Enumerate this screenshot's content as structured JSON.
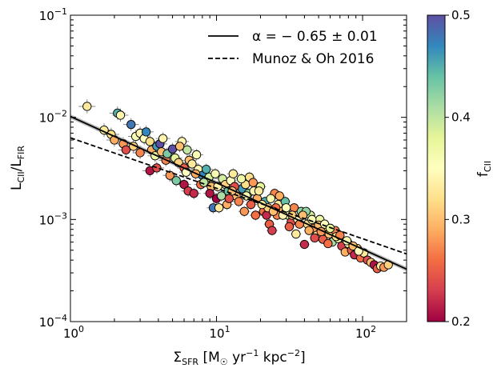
{
  "chart_data": {
    "type": "scatter",
    "x_scale": "log",
    "y_scale": "log",
    "xlim": [
      1,
      200
    ],
    "ylim": [
      0.0001,
      0.1
    ],
    "x_ticks": [
      {
        "value": 1,
        "base": "10",
        "exp": "0"
      },
      {
        "value": 10,
        "base": "10",
        "exp": "1"
      },
      {
        "value": 100,
        "base": "10",
        "exp": "2"
      }
    ],
    "y_ticks": [
      {
        "value": 0.0001,
        "base": "10",
        "exp": "−4"
      },
      {
        "value": 0.001,
        "base": "10",
        "exp": "−3"
      },
      {
        "value": 0.01,
        "base": "10",
        "exp": "−2"
      },
      {
        "value": 0.1,
        "base": "10",
        "exp": "−1"
      }
    ],
    "xlabel": {
      "pre": "Σ",
      "sub": "SFR",
      "unit_a": " [M",
      "unit_sun": "☉",
      "unit_b": " yr",
      "exp1": "−1",
      "unit_c": " kpc",
      "exp2": "−2",
      "close": "]"
    },
    "ylabel": {
      "a": "L",
      "a_sub": "CII",
      "sep": "/L",
      "b_sub": "FIR"
    },
    "colorbar": {
      "label_main": "f",
      "label_sub": "CII",
      "range": [
        0.2,
        0.5
      ],
      "ticks": [
        "0.2",
        "0.3",
        "0.4",
        "0.5"
      ],
      "cmap": [
        "#9e0142",
        "#d53e4f",
        "#f46d43",
        "#fdae61",
        "#fee08b",
        "#ffffbf",
        "#e6f598",
        "#abdda4",
        "#66c2a5",
        "#3288bd",
        "#5e4fa2"
      ]
    },
    "legend": {
      "position": "top-right",
      "entries": [
        {
          "label": "α = − 0.65 ± 0.01",
          "style": "solid"
        },
        {
          "label": "Munoz & Oh 2016",
          "style": "dashed"
        }
      ]
    },
    "series": [
      {
        "name": "α = − 0.65 ± 0.01",
        "type": "line",
        "style": "solid",
        "x": [
          1,
          200
        ],
        "y": [
          0.0102,
          0.000326
        ],
        "band": 0.05
      },
      {
        "name": "Munoz & Oh 2016",
        "type": "line",
        "style": "dashed",
        "x": [
          1,
          200
        ],
        "y": [
          0.0063,
          0.00046
        ]
      },
      {
        "name": "data",
        "type": "scatter",
        "points": [
          [
            1.3,
            0.0128,
            0.33
          ],
          [
            1.7,
            0.0075,
            0.33
          ],
          [
            2.1,
            0.011,
            0.45
          ],
          [
            2.2,
            0.0105,
            0.34
          ],
          [
            1.9,
            0.0068,
            0.32
          ],
          [
            2.0,
            0.006,
            0.29
          ],
          [
            2.3,
            0.0055,
            0.28
          ],
          [
            2.4,
            0.0048,
            0.24
          ],
          [
            2.6,
            0.0085,
            0.48
          ],
          [
            2.8,
            0.0065,
            0.36
          ],
          [
            3.0,
            0.007,
            0.34
          ],
          [
            3.2,
            0.0062,
            0.35
          ],
          [
            3.3,
            0.0072,
            0.47
          ],
          [
            3.5,
            0.0058,
            0.32
          ],
          [
            3.6,
            0.0048,
            0.29
          ],
          [
            3.8,
            0.0042,
            0.37
          ],
          [
            3.9,
            0.0052,
            0.46
          ],
          [
            4.1,
            0.0055,
            0.5
          ],
          [
            4.2,
            0.0046,
            0.3
          ],
          [
            4.5,
            0.0038,
            0.27
          ],
          [
            4.6,
            0.0044,
            0.43
          ],
          [
            5.0,
            0.0049,
            0.5
          ],
          [
            5.2,
            0.004,
            0.38
          ],
          [
            5.5,
            0.0036,
            0.31
          ],
          [
            5.8,
            0.0058,
            0.34
          ],
          [
            6.0,
            0.0032,
            0.25
          ],
          [
            6.3,
            0.0048,
            0.4
          ],
          [
            6.5,
            0.0038,
            0.3
          ],
          [
            3.5,
            0.003,
            0.21
          ],
          [
            3.9,
            0.0032,
            0.24
          ],
          [
            4.8,
            0.0027,
            0.28
          ],
          [
            5.3,
            0.0024,
            0.43
          ],
          [
            6.0,
            0.0022,
            0.21
          ],
          [
            6.4,
            0.0019,
            0.23
          ],
          [
            7.0,
            0.0018,
            0.22
          ],
          [
            7.3,
            0.0043,
            0.36
          ],
          [
            7.5,
            0.0031,
            0.34
          ],
          [
            8.0,
            0.0027,
            0.47
          ],
          [
            8.4,
            0.0024,
            0.33
          ],
          [
            8.9,
            0.0026,
            0.39
          ],
          [
            9.2,
            0.0021,
            0.3
          ],
          [
            9.5,
            0.0013,
            0.48
          ],
          [
            10.0,
            0.0016,
            0.2
          ],
          [
            10.4,
            0.0013,
            0.33
          ],
          [
            11.0,
            0.0025,
            0.39
          ],
          [
            11.5,
            0.0022,
            0.31
          ],
          [
            12.0,
            0.0019,
            0.44
          ],
          [
            12.5,
            0.0024,
            0.35
          ],
          [
            13.0,
            0.0028,
            0.33
          ],
          [
            13.6,
            0.0017,
            0.3
          ],
          [
            14.2,
            0.0015,
            0.27
          ],
          [
            15.0,
            0.002,
            0.46
          ],
          [
            15.8,
            0.0022,
            0.32
          ],
          [
            16.5,
            0.0018,
            0.42
          ],
          [
            17.2,
            0.0014,
            0.25
          ],
          [
            18.0,
            0.0019,
            0.34
          ],
          [
            19.0,
            0.0016,
            0.29
          ],
          [
            20.0,
            0.0021,
            0.38
          ],
          [
            21.0,
            0.0012,
            0.26
          ],
          [
            22.0,
            0.0011,
            0.22
          ],
          [
            23.0,
            0.0009,
            0.25
          ],
          [
            24.0,
            0.00078,
            0.23
          ],
          [
            25.0,
            0.0018,
            0.27
          ],
          [
            26.5,
            0.0014,
            0.33
          ],
          [
            28.0,
            0.0012,
            0.3
          ],
          [
            29.5,
            0.0015,
            0.44
          ],
          [
            31.0,
            0.0011,
            0.37
          ],
          [
            32.5,
            0.00095,
            0.24
          ],
          [
            34.0,
            0.0013,
            0.27
          ],
          [
            36.0,
            0.001,
            0.35
          ],
          [
            38.0,
            0.0012,
            0.42
          ],
          [
            40.0,
            0.00057,
            0.22
          ],
          [
            42.0,
            0.0009,
            0.32
          ],
          [
            44.0,
            0.0011,
            0.39
          ],
          [
            46.0,
            0.00082,
            0.28
          ],
          [
            48.5,
            0.0007,
            0.33
          ],
          [
            51.0,
            0.001,
            0.37
          ],
          [
            53.5,
            0.00064,
            0.25
          ],
          [
            56.0,
            0.00085,
            0.34
          ],
          [
            59.0,
            0.00072,
            0.3
          ],
          [
            62.0,
            0.0006,
            0.41
          ],
          [
            65.0,
            0.00078,
            0.27
          ],
          [
            68.0,
            0.00065,
            0.36
          ],
          [
            72.0,
            0.00055,
            0.23
          ],
          [
            76.0,
            0.00048,
            0.29
          ],
          [
            80.0,
            0.00058,
            0.34
          ],
          [
            84.0,
            0.0005,
            0.25
          ],
          [
            88.0,
            0.00045,
            0.22
          ],
          [
            92.0,
            0.00052,
            0.31
          ],
          [
            97.0,
            0.00042,
            0.26
          ],
          [
            102.0,
            0.00047,
            0.33
          ],
          [
            108.0,
            0.0004,
            0.24
          ],
          [
            114.0,
            0.00038,
            0.3
          ],
          [
            120.0,
            0.00036,
            0.21
          ],
          [
            126.0,
            0.00033,
            0.25
          ],
          [
            133.0,
            0.00035,
            0.33
          ],
          [
            140.0,
            0.00034,
            0.28
          ],
          [
            150.0,
            0.00036,
            0.31
          ],
          [
            8.5,
            0.0031,
            0.45
          ],
          [
            9.8,
            0.0028,
            0.36
          ],
          [
            10.8,
            0.0017,
            0.41
          ],
          [
            11.8,
            0.0014,
            0.29
          ],
          [
            13.3,
            0.0021,
            0.24
          ],
          [
            14.8,
            0.0025,
            0.37
          ],
          [
            16.8,
            0.0026,
            0.32
          ],
          [
            17.8,
            0.0023,
            0.28
          ],
          [
            19.5,
            0.0019,
            0.33
          ],
          [
            21.5,
            0.0015,
            0.45
          ],
          [
            23.5,
            0.0016,
            0.36
          ],
          [
            25.5,
            0.0013,
            0.26
          ],
          [
            27.0,
            0.0017,
            0.29
          ],
          [
            30.0,
            0.0013,
            0.35
          ],
          [
            33.0,
            0.0011,
            0.31
          ],
          [
            37.0,
            0.0009,
            0.27
          ],
          [
            41.0,
            0.0012,
            0.42
          ],
          [
            45.0,
            0.001,
            0.36
          ],
          [
            50.0,
            0.00088,
            0.3
          ],
          [
            55.0,
            0.0009,
            0.35
          ],
          [
            60.0,
            0.00082,
            0.38
          ],
          [
            66.0,
            0.00068,
            0.32
          ],
          [
            70.0,
            0.0007,
            0.27
          ],
          [
            78.0,
            0.00062,
            0.36
          ],
          [
            86.0,
            0.00055,
            0.3
          ],
          [
            94.0,
            0.00049,
            0.35
          ],
          [
            7.8,
            0.0022,
            0.26
          ],
          [
            9.0,
            0.0018,
            0.21
          ],
          [
            12.2,
            0.0016,
            0.24
          ],
          [
            15.5,
            0.0012,
            0.28
          ],
          [
            18.5,
            0.0011,
            0.26
          ],
          [
            22.5,
            0.0013,
            0.31
          ],
          [
            26.0,
            0.0011,
            0.27
          ],
          [
            31.5,
            0.00085,
            0.25
          ],
          [
            35.0,
            0.00072,
            0.33
          ],
          [
            43.0,
            0.00078,
            0.29
          ],
          [
            47.0,
            0.00066,
            0.24
          ],
          [
            58.0,
            0.00058,
            0.26
          ],
          [
            4.3,
            0.0062,
            0.34
          ],
          [
            5.6,
            0.0052,
            0.3
          ],
          [
            6.8,
            0.0035,
            0.33
          ],
          [
            7.2,
            0.0028,
            0.29
          ],
          [
            3.0,
            0.0045,
            0.27
          ],
          [
            2.7,
            0.0052,
            0.31
          ],
          [
            6.2,
            0.0029,
            0.35
          ],
          [
            8.2,
            0.0023,
            0.4
          ],
          [
            10.2,
            0.0021,
            0.34
          ],
          [
            12.8,
            0.0019,
            0.3
          ],
          [
            16.0,
            0.0017,
            0.36
          ],
          [
            20.5,
            0.0014,
            0.33
          ],
          [
            24.5,
            0.0012,
            0.3
          ],
          [
            28.5,
            0.0011,
            0.34
          ],
          [
            39.0,
            0.0011,
            0.3
          ],
          [
            52.0,
            0.00076,
            0.28
          ]
        ]
      }
    ]
  }
}
